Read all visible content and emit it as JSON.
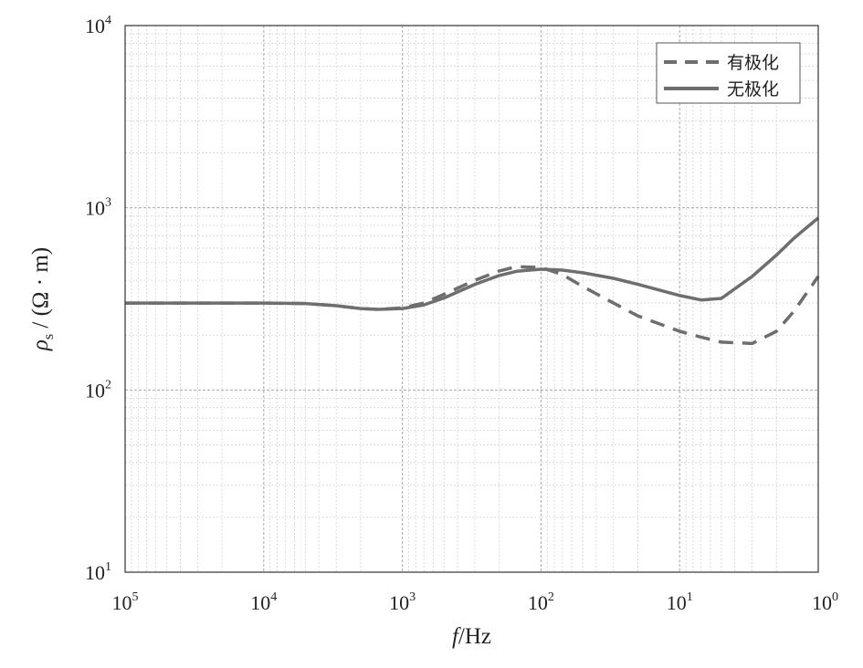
{
  "chart_data": {
    "type": "line",
    "x_scale": "log",
    "y_scale": "log",
    "x_reversed": true,
    "xlim": [
      100000,
      1
    ],
    "ylim": [
      10,
      10000
    ],
    "grid": true,
    "legend_position": "top-right",
    "xlabel": {
      "italic": "f",
      "rest": "/Hz"
    },
    "ylabel": {
      "symbol": "ρ",
      "subscript": "s",
      "rest": " / (Ω · m)"
    },
    "x_ticks": [
      {
        "value": 100000,
        "base": "10",
        "exp": "5"
      },
      {
        "value": 10000,
        "base": "10",
        "exp": "4"
      },
      {
        "value": 1000,
        "base": "10",
        "exp": "3"
      },
      {
        "value": 100,
        "base": "10",
        "exp": "2"
      },
      {
        "value": 10,
        "base": "10",
        "exp": "1"
      },
      {
        "value": 1,
        "base": "10",
        "exp": "0"
      }
    ],
    "y_ticks": [
      {
        "value": 10,
        "base": "10",
        "exp": "1"
      },
      {
        "value": 100,
        "base": "10",
        "exp": "2"
      },
      {
        "value": 1000,
        "base": "10",
        "exp": "3"
      },
      {
        "value": 10000,
        "base": "10",
        "exp": "4"
      }
    ],
    "series": [
      {
        "name": "有极化",
        "style": "dashed",
        "color": "#6e6e6e",
        "x": [
          100000,
          50000,
          20000,
          10000,
          5000,
          3000,
          2000,
          1500,
          1000,
          700,
          500,
          300,
          200,
          150,
          100,
          70,
          50,
          30,
          20,
          10,
          7,
          5,
          3,
          2,
          1.5,
          1
        ],
        "y": [
          300,
          300,
          300,
          300,
          298,
          290,
          280,
          277,
          282,
          300,
          335,
          400,
          450,
          475,
          470,
          430,
          370,
          300,
          255,
          210,
          195,
          183,
          180,
          210,
          270,
          420
        ]
      },
      {
        "name": "无极化",
        "style": "solid",
        "color": "#6e6e6e",
        "x": [
          100000,
          50000,
          20000,
          10000,
          5000,
          3000,
          2000,
          1500,
          1000,
          700,
          500,
          300,
          200,
          150,
          100,
          70,
          50,
          30,
          20,
          10,
          7,
          5,
          3,
          2,
          1.5,
          1
        ],
        "y": [
          300,
          300,
          300,
          300,
          298,
          290,
          280,
          277,
          280,
          293,
          320,
          380,
          425,
          448,
          460,
          455,
          440,
          410,
          380,
          330,
          312,
          318,
          420,
          550,
          680,
          880
        ]
      }
    ]
  }
}
